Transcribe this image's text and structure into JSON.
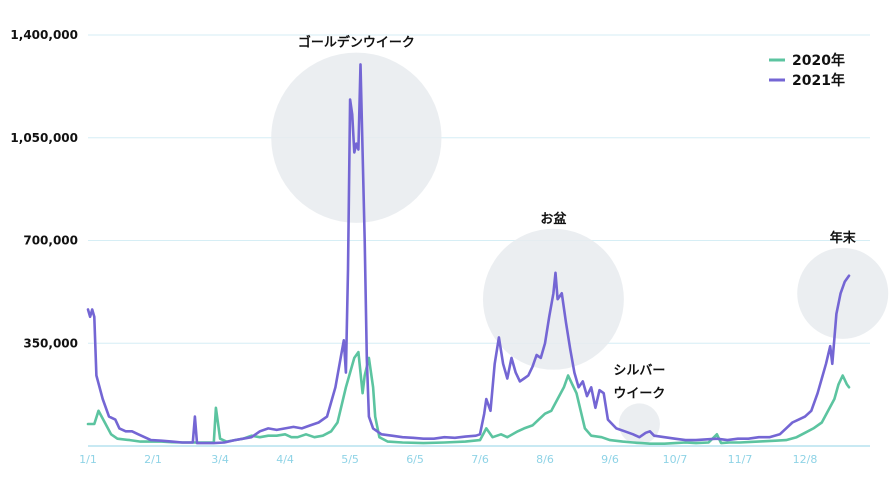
{
  "chart_data": {
    "type": "line",
    "title": "",
    "xlabel": "",
    "ylabel": "",
    "ylim": [
      0,
      1400000
    ],
    "yticks": [
      "1,400,000",
      "1,050,000",
      "700,000",
      "350,000"
    ],
    "ytick_values": [
      1400000,
      1050000,
      700000,
      350000
    ],
    "xticks": [
      "1/1",
      "2/1",
      "3/4",
      "4/4",
      "5/5",
      "6/5",
      "7/6",
      "8/6",
      "9/6",
      "10/7",
      "11/7",
      "12/8"
    ],
    "xtick_days": [
      0,
      31,
      63,
      94,
      125,
      156,
      187,
      218,
      249,
      280,
      311,
      342
    ],
    "x_unit": "day of year (0 = 1/1)",
    "grid": true,
    "legend_position": "top-right",
    "series": [
      {
        "name": "2020年",
        "color": "#5cc4a0",
        "points": [
          [
            0,
            75000
          ],
          [
            3,
            75000
          ],
          [
            5,
            120000
          ],
          [
            8,
            80000
          ],
          [
            11,
            40000
          ],
          [
            14,
            25000
          ],
          [
            20,
            20000
          ],
          [
            25,
            15000
          ],
          [
            30,
            15000
          ],
          [
            35,
            15000
          ],
          [
            40,
            13000
          ],
          [
            45,
            12000
          ],
          [
            50,
            12000
          ],
          [
            55,
            12000
          ],
          [
            60,
            12000
          ],
          [
            61,
            130000
          ],
          [
            63,
            25000
          ],
          [
            66,
            15000
          ],
          [
            70,
            20000
          ],
          [
            74,
            25000
          ],
          [
            78,
            35000
          ],
          [
            82,
            30000
          ],
          [
            86,
            35000
          ],
          [
            90,
            35000
          ],
          [
            94,
            40000
          ],
          [
            97,
            30000
          ],
          [
            100,
            30000
          ],
          [
            104,
            40000
          ],
          [
            108,
            30000
          ],
          [
            112,
            35000
          ],
          [
            116,
            50000
          ],
          [
            119,
            80000
          ],
          [
            121,
            140000
          ],
          [
            123,
            200000
          ],
          [
            125,
            250000
          ],
          [
            127,
            300000
          ],
          [
            129,
            320000
          ],
          [
            131,
            180000
          ],
          [
            132,
            240000
          ],
          [
            134,
            300000
          ],
          [
            136,
            200000
          ],
          [
            137,
            100000
          ],
          [
            139,
            30000
          ],
          [
            143,
            15000
          ],
          [
            150,
            12000
          ],
          [
            160,
            10000
          ],
          [
            170,
            12000
          ],
          [
            180,
            15000
          ],
          [
            187,
            20000
          ],
          [
            190,
            60000
          ],
          [
            193,
            30000
          ],
          [
            197,
            40000
          ],
          [
            200,
            30000
          ],
          [
            205,
            50000
          ],
          [
            208,
            60000
          ],
          [
            212,
            70000
          ],
          [
            215,
            90000
          ],
          [
            218,
            110000
          ],
          [
            221,
            120000
          ],
          [
            224,
            160000
          ],
          [
            227,
            200000
          ],
          [
            229,
            240000
          ],
          [
            231,
            210000
          ],
          [
            233,
            180000
          ],
          [
            235,
            120000
          ],
          [
            237,
            60000
          ],
          [
            240,
            35000
          ],
          [
            245,
            30000
          ],
          [
            249,
            20000
          ],
          [
            255,
            15000
          ],
          [
            260,
            12000
          ],
          [
            264,
            10000
          ],
          [
            268,
            8000
          ],
          [
            275,
            8000
          ],
          [
            280,
            10000
          ],
          [
            285,
            12000
          ],
          [
            290,
            10000
          ],
          [
            296,
            12000
          ],
          [
            300,
            40000
          ],
          [
            302,
            10000
          ],
          [
            306,
            12000
          ],
          [
            311,
            12000
          ],
          [
            316,
            14000
          ],
          [
            322,
            16000
          ],
          [
            328,
            18000
          ],
          [
            333,
            20000
          ],
          [
            338,
            30000
          ],
          [
            342,
            45000
          ],
          [
            346,
            60000
          ],
          [
            350,
            80000
          ],
          [
            353,
            120000
          ],
          [
            356,
            160000
          ],
          [
            358,
            210000
          ],
          [
            360,
            240000
          ],
          [
            362,
            210000
          ],
          [
            363,
            200000
          ]
        ]
      },
      {
        "name": "2021年",
        "color": "#7466d4",
        "points": [
          [
            0,
            465000
          ],
          [
            1,
            440000
          ],
          [
            2,
            465000
          ],
          [
            3,
            440000
          ],
          [
            4,
            240000
          ],
          [
            7,
            160000
          ],
          [
            10,
            100000
          ],
          [
            13,
            90000
          ],
          [
            15,
            60000
          ],
          [
            18,
            50000
          ],
          [
            21,
            50000
          ],
          [
            24,
            40000
          ],
          [
            27,
            30000
          ],
          [
            30,
            20000
          ],
          [
            35,
            18000
          ],
          [
            40,
            15000
          ],
          [
            45,
            12000
          ],
          [
            50,
            12000
          ],
          [
            51,
            100000
          ],
          [
            52,
            10000
          ],
          [
            55,
            10000
          ],
          [
            60,
            10000
          ],
          [
            65,
            12000
          ],
          [
            70,
            20000
          ],
          [
            74,
            25000
          ],
          [
            78,
            30000
          ],
          [
            82,
            50000
          ],
          [
            86,
            60000
          ],
          [
            90,
            55000
          ],
          [
            94,
            60000
          ],
          [
            98,
            65000
          ],
          [
            102,
            60000
          ],
          [
            106,
            70000
          ],
          [
            110,
            80000
          ],
          [
            114,
            100000
          ],
          [
            116,
            150000
          ],
          [
            118,
            200000
          ],
          [
            120,
            280000
          ],
          [
            122,
            360000
          ],
          [
            123,
            250000
          ],
          [
            124,
            600000
          ],
          [
            125,
            1180000
          ],
          [
            126,
            1130000
          ],
          [
            127,
            1000000
          ],
          [
            128,
            1030000
          ],
          [
            129,
            1010000
          ],
          [
            130,
            1300000
          ],
          [
            131,
            1000000
          ],
          [
            132,
            700000
          ],
          [
            133,
            300000
          ],
          [
            134,
            100000
          ],
          [
            136,
            60000
          ],
          [
            140,
            40000
          ],
          [
            145,
            35000
          ],
          [
            150,
            30000
          ],
          [
            155,
            28000
          ],
          [
            160,
            25000
          ],
          [
            165,
            25000
          ],
          [
            170,
            30000
          ],
          [
            175,
            28000
          ],
          [
            180,
            32000
          ],
          [
            185,
            35000
          ],
          [
            187,
            40000
          ],
          [
            189,
            110000
          ],
          [
            190,
            160000
          ],
          [
            192,
            120000
          ],
          [
            194,
            280000
          ],
          [
            196,
            370000
          ],
          [
            198,
            280000
          ],
          [
            200,
            230000
          ],
          [
            202,
            300000
          ],
          [
            204,
            250000
          ],
          [
            206,
            220000
          ],
          [
            208,
            230000
          ],
          [
            210,
            240000
          ],
          [
            212,
            270000
          ],
          [
            214,
            310000
          ],
          [
            216,
            300000
          ],
          [
            218,
            350000
          ],
          [
            220,
            440000
          ],
          [
            222,
            520000
          ],
          [
            223,
            590000
          ],
          [
            224,
            500000
          ],
          [
            226,
            520000
          ],
          [
            228,
            420000
          ],
          [
            230,
            330000
          ],
          [
            232,
            250000
          ],
          [
            234,
            200000
          ],
          [
            236,
            220000
          ],
          [
            238,
            170000
          ],
          [
            240,
            200000
          ],
          [
            242,
            130000
          ],
          [
            244,
            190000
          ],
          [
            246,
            180000
          ],
          [
            248,
            90000
          ],
          [
            252,
            60000
          ],
          [
            256,
            50000
          ],
          [
            260,
            40000
          ],
          [
            263,
            30000
          ],
          [
            266,
            45000
          ],
          [
            268,
            50000
          ],
          [
            270,
            35000
          ],
          [
            275,
            30000
          ],
          [
            280,
            25000
          ],
          [
            285,
            20000
          ],
          [
            290,
            20000
          ],
          [
            300,
            25000
          ],
          [
            305,
            20000
          ],
          [
            310,
            25000
          ],
          [
            315,
            25000
          ],
          [
            320,
            30000
          ],
          [
            325,
            30000
          ],
          [
            330,
            40000
          ],
          [
            333,
            60000
          ],
          [
            336,
            80000
          ],
          [
            339,
            90000
          ],
          [
            342,
            100000
          ],
          [
            345,
            120000
          ],
          [
            348,
            180000
          ],
          [
            350,
            230000
          ],
          [
            352,
            280000
          ],
          [
            354,
            340000
          ],
          [
            355,
            280000
          ],
          [
            357,
            450000
          ],
          [
            359,
            520000
          ],
          [
            361,
            560000
          ],
          [
            363,
            580000
          ]
        ]
      }
    ],
    "annotations": [
      {
        "label": "ゴールデンウイーク",
        "day": 128,
        "value": 1050000,
        "radius_value": 290000
      },
      {
        "label": "お盆",
        "day": 222,
        "value": 500000,
        "radius_value": 240000
      },
      {
        "label": "シルバー\nウイーク",
        "day": 263,
        "value": 75000,
        "radius_value": 70000
      },
      {
        "label": "年末",
        "day": 360,
        "value": 520000,
        "radius_value": 155000
      }
    ]
  }
}
